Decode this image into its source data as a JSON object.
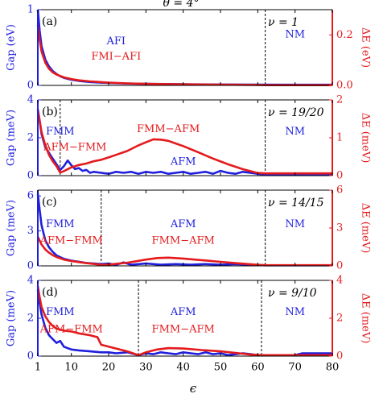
{
  "figure_title": "θ = 4°",
  "colors": {
    "gap": "#1f1fdd",
    "delta": "#e41a1c",
    "axis": "#000000"
  },
  "chart_data": [
    {
      "type": "line",
      "panel_label": "(a)",
      "nu_text": "ν = 1",
      "xlabel": "ϵ",
      "xlim": [
        1,
        80
      ],
      "x_ticks": [
        "1",
        "10",
        "20",
        "30",
        "40",
        "50",
        "60",
        "70",
        "80"
      ],
      "ylabel_left": "Gap (eV)",
      "ylim_left": [
        0,
        1
      ],
      "y_ticks_left": [
        "0",
        "1"
      ],
      "ylabel_right": "ΔE (eV)",
      "ylim_right": [
        0,
        0.3
      ],
      "y_ticks_right": [
        "0.0",
        "0.2"
      ],
      "dashed_lines_x": [
        62
      ],
      "annotations": [
        {
          "text": "AFI",
          "color": "gap",
          "x": 22,
          "y_frac": 0.58
        },
        {
          "text": "FMI−AFI",
          "color": "delta",
          "x": 22,
          "y_frac": 0.38
        },
        {
          "text": "NM",
          "color": "gap",
          "x": 70,
          "y_frac": 0.67
        }
      ],
      "series": [
        {
          "name": "Gap",
          "color": "gap",
          "axis": "left",
          "x": [
            1,
            1.5,
            2,
            3,
            4,
            5,
            6,
            7,
            8,
            10,
            12,
            15,
            20,
            25,
            30,
            40,
            50,
            60,
            70,
            80
          ],
          "values": [
            1.0,
            0.72,
            0.52,
            0.34,
            0.25,
            0.19,
            0.15,
            0.12,
            0.1,
            0.075,
            0.06,
            0.045,
            0.032,
            0.024,
            0.02,
            0.015,
            0.012,
            0.01,
            0.009,
            0.008
          ]
        },
        {
          "name": "ΔE",
          "color": "delta",
          "axis": "right",
          "x": [
            1,
            1.5,
            2,
            3,
            4,
            5,
            6,
            8,
            10,
            12,
            15,
            20,
            25,
            30,
            35,
            40,
            50,
            60,
            62,
            70,
            80
          ],
          "values": [
            0.24,
            0.18,
            0.135,
            0.09,
            0.066,
            0.052,
            0.043,
            0.032,
            0.025,
            0.02,
            0.016,
            0.011,
            0.008,
            0.006,
            0.005,
            0.004,
            0.003,
            0.002,
            0.001,
            0.001,
            0.001
          ]
        }
      ]
    },
    {
      "type": "line",
      "panel_label": "(b)",
      "nu_text": "ν = 19/20",
      "xlabel": "ϵ",
      "xlim": [
        1,
        80
      ],
      "x_ticks": [
        "1",
        "10",
        "20",
        "30",
        "40",
        "50",
        "60",
        "70",
        "80"
      ],
      "ylabel_left": "Gap (meV)",
      "ylim_left": [
        0,
        4
      ],
      "y_ticks_left": [
        "0",
        "2",
        "4"
      ],
      "ylabel_right": "ΔE (meV)",
      "ylim_right": [
        0,
        2
      ],
      "y_ticks_right": [
        "0",
        "1",
        "2"
      ],
      "dashed_lines_x": [
        7,
        62
      ],
      "annotations": [
        {
          "text": "FMM",
          "color": "gap",
          "x": 7,
          "y_frac": 0.58
        },
        {
          "text": "AFM−FMM",
          "color": "delta",
          "x": 11,
          "y_frac": 0.37
        },
        {
          "text": "FMM−AFM",
          "color": "delta",
          "x": 36,
          "y_frac": 0.61
        },
        {
          "text": "AFM",
          "color": "gap",
          "x": 40,
          "y_frac": 0.18
        },
        {
          "text": "NM",
          "color": "gap",
          "x": 70,
          "y_frac": 0.58
        }
      ],
      "series": [
        {
          "name": "Gap",
          "color": "gap",
          "axis": "left",
          "x": [
            1,
            1.5,
            2,
            3,
            4,
            5,
            6,
            7,
            8,
            9,
            10,
            11,
            12,
            13,
            14,
            15,
            16,
            18,
            20,
            22,
            24,
            26,
            28,
            30,
            32,
            34,
            36,
            38,
            40,
            42,
            44,
            46,
            48,
            50,
            52,
            54,
            56,
            58,
            60,
            62,
            66,
            70,
            75,
            80
          ],
          "values": [
            3.5,
            2.9,
            2.2,
            1.5,
            1.2,
            0.9,
            0.6,
            0.3,
            0.5,
            0.8,
            0.55,
            0.35,
            0.4,
            0.25,
            0.3,
            0.15,
            0.2,
            0.15,
            0.1,
            0.2,
            0.15,
            0.2,
            0.1,
            0.2,
            0.15,
            0.2,
            0.1,
            0.15,
            0.2,
            0.1,
            0.15,
            0.2,
            0.1,
            0.25,
            0.15,
            0.1,
            0.2,
            0.15,
            0.1,
            0.05,
            0.05,
            0.05,
            0.05,
            0.05
          ]
        },
        {
          "name": "ΔE",
          "color": "delta",
          "axis": "right",
          "x": [
            1,
            1.5,
            2,
            3,
            4,
            5,
            6,
            7,
            8,
            10,
            12,
            14,
            16,
            18,
            20,
            22,
            25,
            28,
            30,
            32,
            34,
            36,
            38,
            40,
            44,
            48,
            52,
            56,
            60,
            62,
            70,
            80
          ],
          "values": [
            1.75,
            1.45,
            1.15,
            0.8,
            0.55,
            0.38,
            0.25,
            0.08,
            0.12,
            0.22,
            0.28,
            0.32,
            0.38,
            0.42,
            0.48,
            0.55,
            0.65,
            0.8,
            0.88,
            0.96,
            0.95,
            0.92,
            0.85,
            0.78,
            0.62,
            0.45,
            0.3,
            0.17,
            0.07,
            0.06,
            0.06,
            0.06
          ]
        }
      ]
    },
    {
      "type": "line",
      "panel_label": "(c)",
      "nu_text": "ν = 14/15",
      "xlabel": "ϵ",
      "xlim": [
        1,
        80
      ],
      "x_ticks": [
        "1",
        "10",
        "20",
        "30",
        "40",
        "50",
        "60",
        "70",
        "80"
      ],
      "ylabel_left": "Gap (meV)",
      "ylim_left": [
        0,
        6.5
      ],
      "y_ticks_left": [
        "0",
        "3",
        "6"
      ],
      "ylabel_right": "ΔE (meV)",
      "ylim_right": [
        0,
        6
      ],
      "y_ticks_right": [
        "0",
        "3",
        "6"
      ],
      "dashed_lines_x": [
        18,
        62
      ],
      "annotations": [
        {
          "text": "FMM",
          "color": "gap",
          "x": 7,
          "y_frac": 0.55
        },
        {
          "text": "AFM−FMM",
          "color": "delta",
          "x": 10,
          "y_frac": 0.33
        },
        {
          "text": "AFM",
          "color": "gap",
          "x": 40,
          "y_frac": 0.55
        },
        {
          "text": "FMM−AFM",
          "color": "delta",
          "x": 40,
          "y_frac": 0.33
        },
        {
          "text": "NM",
          "color": "gap",
          "x": 70,
          "y_frac": 0.55
        }
      ],
      "series": [
        {
          "name": "Gap",
          "color": "gap",
          "axis": "left",
          "x": [
            1,
            1.5,
            2,
            3,
            4,
            5,
            6,
            8,
            10,
            12,
            14,
            16,
            18,
            20,
            22,
            24,
            26,
            28,
            30,
            34,
            38,
            42,
            46,
            50,
            54,
            58,
            62,
            66,
            70,
            75,
            80
          ],
          "values": [
            6.2,
            4.8,
            3.5,
            2.2,
            1.6,
            1.2,
            0.9,
            0.6,
            0.45,
            0.35,
            0.25,
            0.2,
            0.15,
            0.2,
            0.1,
            0.3,
            0.1,
            0.15,
            0.2,
            0.1,
            0.15,
            0.1,
            0.15,
            0.1,
            0.15,
            0.1,
            0.05,
            0.05,
            0.05,
            0.05,
            0.05
          ]
        },
        {
          "name": "ΔE",
          "color": "delta",
          "axis": "right",
          "x": [
            1,
            1.5,
            2,
            3,
            4,
            5,
            6,
            8,
            10,
            12,
            14,
            16,
            18,
            20,
            25,
            30,
            33,
            36,
            40,
            45,
            50,
            55,
            60,
            62,
            70,
            80
          ],
          "values": [
            2.3,
            2.0,
            1.7,
            1.3,
            1.05,
            0.85,
            0.7,
            0.5,
            0.38,
            0.3,
            0.22,
            0.15,
            0.08,
            0.1,
            0.25,
            0.5,
            0.62,
            0.65,
            0.58,
            0.45,
            0.32,
            0.2,
            0.08,
            0.05,
            0.05,
            0.05
          ]
        }
      ]
    },
    {
      "type": "line",
      "panel_label": "(d)",
      "nu_text": "ν = 9/10",
      "xlabel": "ϵ",
      "xlim": [
        1,
        80
      ],
      "x_ticks": [
        "1",
        "10",
        "20",
        "30",
        "40",
        "50",
        "60",
        "70",
        "80"
      ],
      "ylabel_left": "Gap (meV)",
      "ylim_left": [
        0,
        4
      ],
      "y_ticks_left": [
        "0",
        "2",
        "4"
      ],
      "ylabel_right": "ΔE (meV)",
      "ylim_right": [
        0,
        4
      ],
      "y_ticks_right": [
        "0",
        "2",
        "4"
      ],
      "dashed_lines_x": [
        28,
        61
      ],
      "annotations": [
        {
          "text": "FMM",
          "color": "gap",
          "x": 7,
          "y_frac": 0.58
        },
        {
          "text": "AFM−FMM",
          "color": "delta",
          "x": 10,
          "y_frac": 0.35
        },
        {
          "text": "AFM",
          "color": "gap",
          "x": 40,
          "y_frac": 0.58
        },
        {
          "text": "FMM−AFM",
          "color": "delta",
          "x": 40,
          "y_frac": 0.35
        },
        {
          "text": "NM",
          "color": "gap",
          "x": 70,
          "y_frac": 0.58
        }
      ],
      "series": [
        {
          "name": "Gap",
          "color": "gap",
          "axis": "left",
          "x": [
            1,
            1.5,
            2,
            3,
            4,
            5,
            6,
            7,
            8,
            10,
            12,
            15,
            18,
            20,
            22,
            25,
            28,
            30,
            32,
            34,
            36,
            38,
            40,
            42,
            44,
            46,
            48,
            50,
            52,
            54,
            56,
            58,
            60,
            62,
            66,
            70,
            72,
            74,
            76,
            80
          ],
          "values": [
            3.5,
            2.8,
            2.2,
            1.5,
            1.1,
            0.9,
            0.7,
            0.8,
            0.5,
            0.35,
            0.3,
            0.25,
            0.2,
            0.2,
            0.15,
            0.2,
            0.05,
            0.15,
            0.1,
            0.2,
            0.15,
            0.1,
            0.2,
            0.15,
            0.1,
            0.2,
            0.1,
            0.15,
            0.05,
            0.1,
            0.15,
            0.1,
            0.05,
            0.05,
            0.05,
            0.05,
            0.15,
            0.15,
            0.15,
            0.15
          ]
        },
        {
          "name": "ΔE",
          "color": "delta",
          "axis": "right",
          "x": [
            1,
            1.5,
            2,
            3,
            4,
            5,
            6,
            8,
            10,
            12,
            15,
            17,
            18,
            20,
            22,
            25,
            28,
            30,
            33,
            36,
            40,
            45,
            50,
            55,
            58,
            61,
            66,
            70,
            80
          ],
          "values": [
            3.7,
            3.1,
            2.6,
            2.1,
            1.8,
            1.6,
            1.45,
            1.35,
            1.3,
            1.2,
            1.1,
            1.0,
            0.6,
            0.5,
            0.4,
            0.25,
            0.05,
            0.2,
            0.35,
            0.42,
            0.4,
            0.32,
            0.25,
            0.15,
            0.08,
            0.05,
            0.05,
            0.05,
            0.05
          ]
        }
      ]
    }
  ]
}
